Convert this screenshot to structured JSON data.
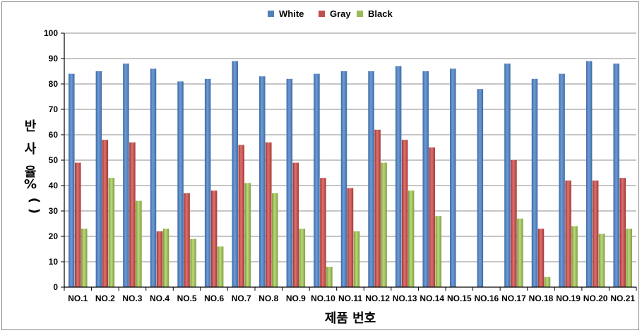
{
  "chart_data": {
    "type": "bar",
    "title": "",
    "xlabel": "제품 번호",
    "ylabel_chars": [
      "반",
      "사",
      "율",
      "(",
      "%",
      ")"
    ],
    "ylim": [
      0,
      100
    ],
    "yticks": [
      0,
      10,
      20,
      30,
      40,
      50,
      60,
      70,
      80,
      90,
      100
    ],
    "grid": true,
    "legend_position": "top-center",
    "categories": [
      "NO.1",
      "NO.2",
      "NO.3",
      "NO.4",
      "NO.5",
      "NO.6",
      "NO.7",
      "NO.8",
      "NO.9",
      "NO.10",
      "NO.11",
      "NO.12",
      "NO.13",
      "NO.14",
      "NO.15",
      "NO.16",
      "NO.17",
      "NO.18",
      "NO.19",
      "NO.20",
      "NO.21"
    ],
    "series": [
      {
        "name": "White",
        "color": "#4f81bd",
        "values": [
          84,
          85,
          88,
          86,
          81,
          82,
          89,
          83,
          82,
          84,
          85,
          85,
          87,
          85,
          86,
          78,
          88,
          82,
          84,
          89,
          88
        ]
      },
      {
        "name": "Gray",
        "color": "#c0504d",
        "values": [
          49,
          58,
          57,
          22,
          37,
          38,
          56,
          57,
          49,
          43,
          39,
          62,
          58,
          55,
          null,
          null,
          50,
          23,
          42,
          42,
          43
        ]
      },
      {
        "name": "Black",
        "color": "#9bbb59",
        "values": [
          23,
          43,
          34,
          23,
          19,
          16,
          41,
          37,
          23,
          8,
          22,
          49,
          38,
          28,
          null,
          null,
          27,
          4,
          24,
          21,
          23
        ]
      }
    ]
  }
}
